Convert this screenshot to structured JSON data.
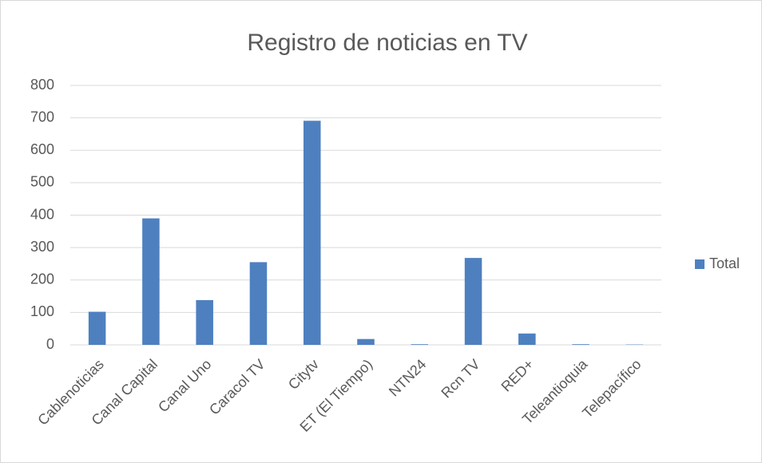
{
  "chart_data": {
    "type": "bar",
    "title": "Registro de noticias en TV",
    "categories": [
      "Cablenoticias",
      "Canal Capital",
      "Canal Uno",
      "Caracol TV",
      "Citytv",
      "ET (El Tiempo)",
      "NTN24",
      "Rcn TV",
      "RED+",
      "Teleantioquia",
      "Telepacífico"
    ],
    "series": [
      {
        "name": "Total",
        "color": "#4e80c0",
        "values": [
          102,
          390,
          138,
          255,
          691,
          18,
          2,
          268,
          35,
          2,
          1
        ]
      }
    ],
    "ylim": [
      0,
      800
    ],
    "yticks": [
      0,
      100,
      200,
      300,
      400,
      500,
      600,
      700,
      800
    ],
    "grid": true,
    "legend": "right"
  }
}
